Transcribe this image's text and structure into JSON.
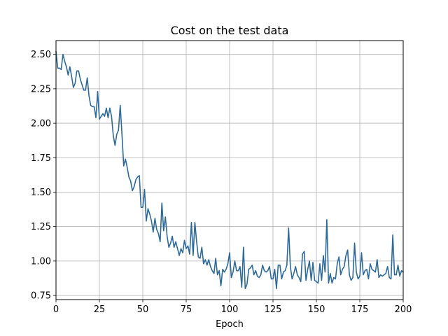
{
  "chart_data": {
    "type": "line",
    "title": "Cost on the test data",
    "xlabel": "Epoch",
    "ylabel": "",
    "xlim": [
      0,
      200
    ],
    "ylim": [
      0.72,
      2.6
    ],
    "xticks": [
      0,
      25,
      50,
      75,
      100,
      125,
      150,
      175,
      200
    ],
    "xtick_labels": [
      "0",
      "25",
      "50",
      "75",
      "100",
      "125",
      "150",
      "175",
      "200"
    ],
    "yticks": [
      0.75,
      1.0,
      1.25,
      1.5,
      1.75,
      2.0,
      2.25,
      2.5
    ],
    "ytick_labels": [
      "0.75",
      "1.00",
      "1.25",
      "1.50",
      "1.75",
      "2.00",
      "2.25",
      "2.50"
    ],
    "grid": true,
    "line_color": "#2b6a9e",
    "x_start": 0,
    "x_step": 1,
    "values": [
      2.52,
      2.4,
      2.4,
      2.39,
      2.5,
      2.45,
      2.41,
      2.35,
      2.41,
      2.34,
      2.26,
      2.29,
      2.38,
      2.38,
      2.32,
      2.28,
      2.24,
      2.24,
      2.33,
      2.2,
      2.13,
      2.12,
      2.12,
      2.04,
      2.23,
      2.03,
      2.05,
      2.07,
      2.05,
      2.11,
      2.04,
      2.11,
      2.05,
      1.91,
      1.84,
      1.92,
      1.95,
      2.13,
      1.92,
      1.69,
      1.74,
      1.68,
      1.61,
      1.58,
      1.51,
      1.54,
      1.59,
      1.61,
      1.62,
      1.39,
      1.39,
      1.52,
      1.29,
      1.38,
      1.34,
      1.29,
      1.21,
      1.31,
      1.23,
      1.2,
      1.14,
      1.42,
      1.22,
      1.32,
      1.18,
      1.1,
      1.13,
      1.18,
      1.1,
      1.14,
      1.09,
      1.04,
      1.09,
      1.06,
      1.15,
      1.09,
      1.11,
      1.05,
      1.28,
      1.04,
      1.28,
      1.14,
      1.03,
      1.02,
      1.1,
      0.98,
      1.01,
      0.97,
      1.01,
      0.96,
      0.93,
      0.91,
      1.02,
      0.9,
      0.93,
      0.82,
      0.94,
      0.92,
      0.94,
      0.98,
      1.06,
      0.88,
      0.92,
      1.0,
      0.93,
      0.93,
      0.96,
      0.81,
      1.1,
      0.8,
      0.83,
      0.94,
      0.95,
      0.97,
      0.9,
      0.93,
      0.89,
      0.88,
      0.9,
      0.97,
      0.93,
      0.92,
      0.93,
      0.96,
      0.87,
      0.87,
      0.94,
      0.8,
      0.97,
      0.97,
      0.87,
      0.92,
      0.93,
      0.97,
      1.24,
      0.96,
      0.87,
      0.91,
      0.96,
      0.9,
      0.88,
      0.85,
      1.05,
      1.07,
      0.86,
      0.94,
      1.0,
      0.86,
      0.99,
      0.86,
      0.85,
      0.84,
      0.98,
      0.86,
      1.04,
      0.92,
      1.3,
      0.84,
      0.91,
      0.84,
      0.88,
      0.87,
      0.98,
      1.03,
      0.9,
      0.94,
      0.96,
      1.04,
      1.08,
      0.9,
      0.86,
      0.88,
      1.13,
      0.92,
      0.87,
      0.89,
      1.06,
      0.9,
      0.93,
      0.94,
      0.87,
      0.98,
      0.94,
      0.93,
      0.92,
      1.01,
      0.88,
      0.9,
      0.89,
      0.9,
      0.91,
      0.96,
      0.88,
      0.87,
      1.19,
      0.9,
      0.9,
      0.97,
      0.89,
      0.93,
      0.92
    ]
  }
}
